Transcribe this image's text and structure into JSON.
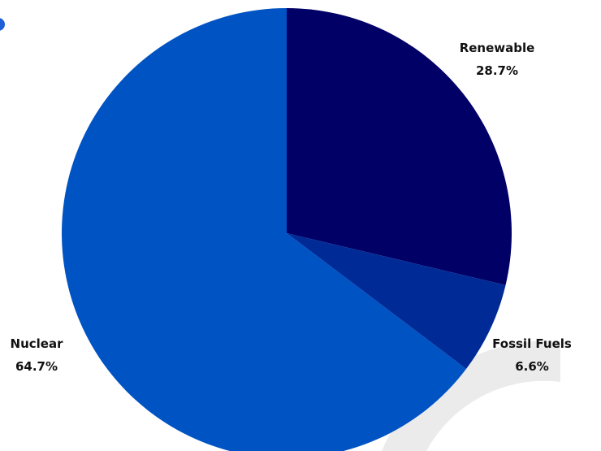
{
  "chart_data": {
    "type": "pie",
    "title": "",
    "start_angle_deg": 0,
    "direction": "clockwise",
    "slices": [
      {
        "label": "Renewable",
        "value": 28.7,
        "value_text": "28.7%",
        "color": "#000066"
      },
      {
        "label": "Fossil Fuels",
        "value": 6.6,
        "value_text": "6.6%",
        "color": "#002b96"
      },
      {
        "label": "Nuclear",
        "value": 64.7,
        "value_text": "64.7%",
        "color": "#0053c3"
      }
    ],
    "decoration_color": "#ebebeb",
    "marker_color": "#1f5fd6"
  }
}
